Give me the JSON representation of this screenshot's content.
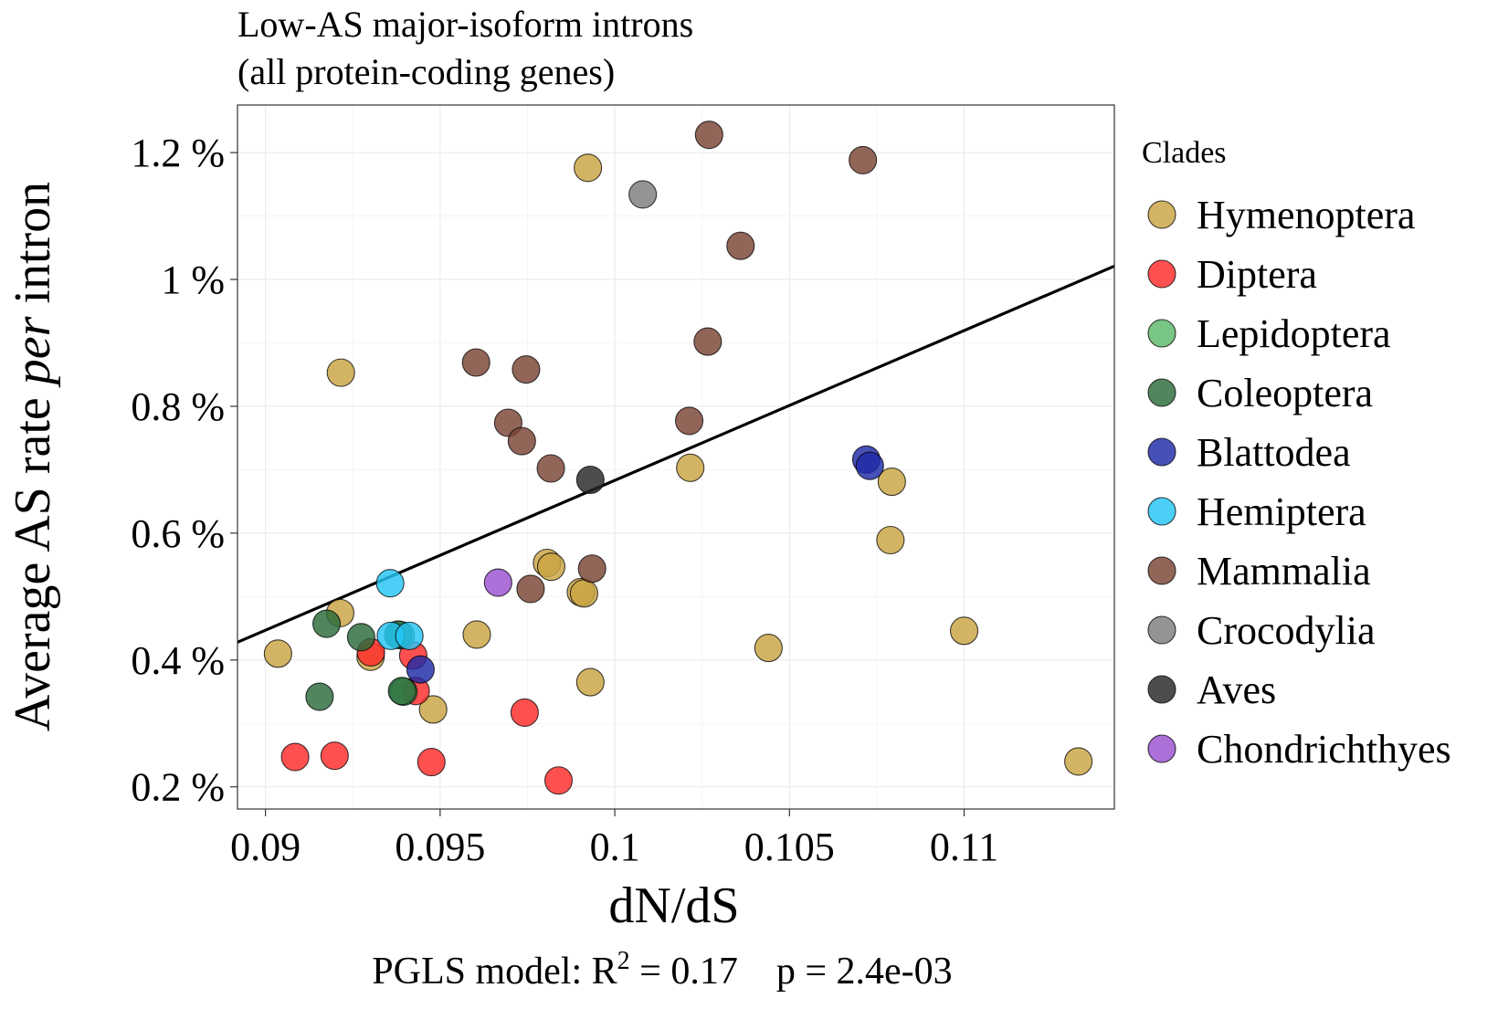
{
  "chart_data": {
    "type": "scatter",
    "title": "Low-AS major-isoform introns",
    "subtitle": "(all protein-coding genes)",
    "xlabel": "dN/dS",
    "ylabel_prefix": "Average AS rate ",
    "ylabel_italic": "per",
    "ylabel_suffix": " intron",
    "caption_prefix": "PGLS model: R",
    "caption_sup": "2",
    "caption_suffix": " = 0.17    p = 2.4e-03",
    "xlim": [
      0.0892,
      0.1143
    ],
    "ylim": [
      0.165,
      1.275
    ],
    "grid": true,
    "x_ticks": [
      {
        "value": 0.09,
        "label": "0.09"
      },
      {
        "value": 0.095,
        "label": "0.095"
      },
      {
        "value": 0.1,
        "label": "0.1"
      },
      {
        "value": 0.105,
        "label": "0.105"
      },
      {
        "value": 0.11,
        "label": "0.11"
      }
    ],
    "y_ticks": [
      {
        "value": 0.2,
        "label": "0.2 %"
      },
      {
        "value": 0.4,
        "label": "0.4 %"
      },
      {
        "value": 0.6,
        "label": "0.6 %"
      },
      {
        "value": 0.8,
        "label": "0.8 %"
      },
      {
        "value": 1.0,
        "label": "1 %"
      },
      {
        "value": 1.2,
        "label": "1.2 %"
      }
    ],
    "regression_line": {
      "x": [
        0.0892,
        0.1143
      ],
      "y": [
        0.428,
        1.021
      ]
    },
    "legend": {
      "title": "Clades",
      "position": "right"
    },
    "series": [
      {
        "name": "Hymenoptera",
        "color": "#c9a442",
        "points": [
          [
            0.09036,
            0.41
          ],
          [
            0.09214,
            0.474
          ],
          [
            0.09216,
            0.853
          ],
          [
            0.09301,
            0.405
          ],
          [
            0.0948,
            0.322
          ],
          [
            0.09605,
            0.44
          ],
          [
            0.09806,
            0.553
          ],
          [
            0.09818,
            0.547
          ],
          [
            0.09903,
            0.507
          ],
          [
            0.09912,
            0.505
          ],
          [
            0.09923,
            1.176
          ],
          [
            0.0993,
            0.365
          ],
          [
            0.10216,
            0.703
          ],
          [
            0.1044,
            0.419
          ],
          [
            0.10789,
            0.589
          ],
          [
            0.10793,
            0.681
          ],
          [
            0.11,
            0.446
          ],
          [
            0.11327,
            0.24
          ]
        ]
      },
      {
        "name": "Diptera",
        "color": "#ff2a2a",
        "points": [
          [
            0.09085,
            0.247
          ],
          [
            0.09198,
            0.249
          ],
          [
            0.09302,
            0.412
          ],
          [
            0.09423,
            0.407
          ],
          [
            0.0943,
            0.351
          ],
          [
            0.09475,
            0.239
          ],
          [
            0.09742,
            0.317
          ],
          [
            0.09839,
            0.21
          ]
        ]
      },
      {
        "name": "Lepidoptera",
        "color": "#5cb86a",
        "points": [
          [
            0.09387,
            0.439
          ],
          [
            0.09395,
            0.35
          ]
        ]
      },
      {
        "name": "Coleoptera",
        "color": "#2a6a3a",
        "points": [
          [
            0.09155,
            0.342
          ],
          [
            0.09175,
            0.457
          ],
          [
            0.09274,
            0.436
          ],
          [
            0.0938,
            0.44
          ],
          [
            0.09391,
            0.351
          ]
        ]
      },
      {
        "name": "Blattodea",
        "color": "#1f2aa6",
        "points": [
          [
            0.09444,
            0.385
          ],
          [
            0.1072,
            0.716
          ],
          [
            0.1073,
            0.706
          ]
        ]
      },
      {
        "name": "Hemiptera",
        "color": "#23c4f5",
        "points": [
          [
            0.09357,
            0.521
          ],
          [
            0.09359,
            0.438
          ],
          [
            0.09412,
            0.438
          ]
        ]
      },
      {
        "name": "Mammalia",
        "color": "#7a4334",
        "points": [
          [
            0.09603,
            0.869
          ],
          [
            0.09695,
            0.774
          ],
          [
            0.09734,
            0.745
          ],
          [
            0.09746,
            0.858
          ],
          [
            0.09759,
            0.512
          ],
          [
            0.09817,
            0.702
          ],
          [
            0.09935,
            0.544
          ],
          [
            0.10213,
            0.777
          ],
          [
            0.10266,
            0.902
          ],
          [
            0.1027,
            1.228
          ],
          [
            0.1036,
            1.053
          ],
          [
            0.1071,
            1.188
          ]
        ]
      },
      {
        "name": "Crocodylia",
        "color": "#7c7c7c",
        "points": [
          [
            0.1008,
            1.134
          ]
        ]
      },
      {
        "name": "Aves",
        "color": "#262626",
        "points": [
          [
            0.0993,
            0.684
          ]
        ]
      },
      {
        "name": "Chondrichthyes",
        "color": "#9b4fcf",
        "points": [
          [
            0.09666,
            0.522
          ]
        ]
      }
    ]
  }
}
